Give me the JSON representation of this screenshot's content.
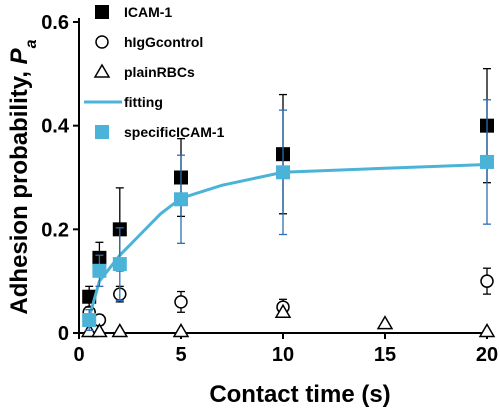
{
  "chart_data": {
    "type": "scatter",
    "xlabel": "Contact time (s)",
    "ylabel_main": "Adhesion probability, ",
    "ylabel_symbol": "P",
    "ylabel_subscript": "a",
    "xlim": [
      0,
      20
    ],
    "ylim": [
      0,
      0.6
    ],
    "x_ticks": [
      0,
      5,
      10,
      15,
      20
    ],
    "y_ticks": [
      0,
      0.2,
      0.4,
      0.6
    ],
    "x_tick_labels": [
      "0",
      "5",
      "10",
      "15",
      "20"
    ],
    "y_tick_labels": [
      "0",
      "0.2",
      "0.4",
      "0.6"
    ],
    "grid": false,
    "legend_position": "top-left",
    "series": [
      {
        "name": "ICAM-1",
        "marker": "filled-square",
        "color": "#000000",
        "points": [
          {
            "x": 0.5,
            "y": 0.07,
            "err": 0.02
          },
          {
            "x": 1,
            "y": 0.145,
            "err": 0.03
          },
          {
            "x": 2,
            "y": 0.2,
            "err": 0.08
          },
          {
            "x": 5,
            "y": 0.3,
            "err": 0.075
          },
          {
            "x": 10,
            "y": 0.345,
            "err": 0.115
          },
          {
            "x": 20,
            "y": 0.4,
            "err": 0.11
          }
        ]
      },
      {
        "name": "hIgGcontrol",
        "marker": "open-circle",
        "color": "#000000",
        "points": [
          {
            "x": 0.5,
            "y": 0.04,
            "err": 0.01
          },
          {
            "x": 1,
            "y": 0.025,
            "err": 0.01
          },
          {
            "x": 2,
            "y": 0.075,
            "err": 0.015
          },
          {
            "x": 5,
            "y": 0.06,
            "err": 0.02
          },
          {
            "x": 10,
            "y": 0.05,
            "err": 0.015
          },
          {
            "x": 20,
            "y": 0.1,
            "err": 0.025
          }
        ]
      },
      {
        "name": "plainRBCs",
        "marker": "open-triangle",
        "color": "#000000",
        "points": [
          {
            "x": 0.5,
            "y": 0.003,
            "err": 0
          },
          {
            "x": 1,
            "y": 0.003,
            "err": 0
          },
          {
            "x": 2,
            "y": 0.003,
            "err": 0
          },
          {
            "x": 5,
            "y": 0.003,
            "err": 0
          },
          {
            "x": 10,
            "y": 0.04,
            "err": 0
          },
          {
            "x": 15,
            "y": 0.018,
            "err": 0
          },
          {
            "x": 20,
            "y": 0.003,
            "err": 0
          }
        ]
      },
      {
        "name": "fitting",
        "marker": "line",
        "color": "#4bb3d8",
        "points": [
          {
            "x": 0.5,
            "y": 0.03
          },
          {
            "x": 1,
            "y": 0.1
          },
          {
            "x": 2,
            "y": 0.15
          },
          {
            "x": 3,
            "y": 0.19
          },
          {
            "x": 4,
            "y": 0.23
          },
          {
            "x": 5,
            "y": 0.26
          },
          {
            "x": 7,
            "y": 0.285
          },
          {
            "x": 10,
            "y": 0.31
          },
          {
            "x": 15,
            "y": 0.318
          },
          {
            "x": 20,
            "y": 0.325
          }
        ]
      },
      {
        "name": "specificICAM-1",
        "marker": "filled-square",
        "color": "#4bb3d8",
        "error_color": "#2c6fb5",
        "points": [
          {
            "x": 0.5,
            "y": 0.025,
            "err": 0.02
          },
          {
            "x": 1,
            "y": 0.12,
            "err": 0.03
          },
          {
            "x": 2,
            "y": 0.133,
            "err": 0.07
          },
          {
            "x": 5,
            "y": 0.258,
            "err": 0.085
          },
          {
            "x": 10,
            "y": 0.31,
            "err": 0.12
          },
          {
            "x": 20,
            "y": 0.33,
            "err": 0.12
          }
        ]
      }
    ]
  }
}
